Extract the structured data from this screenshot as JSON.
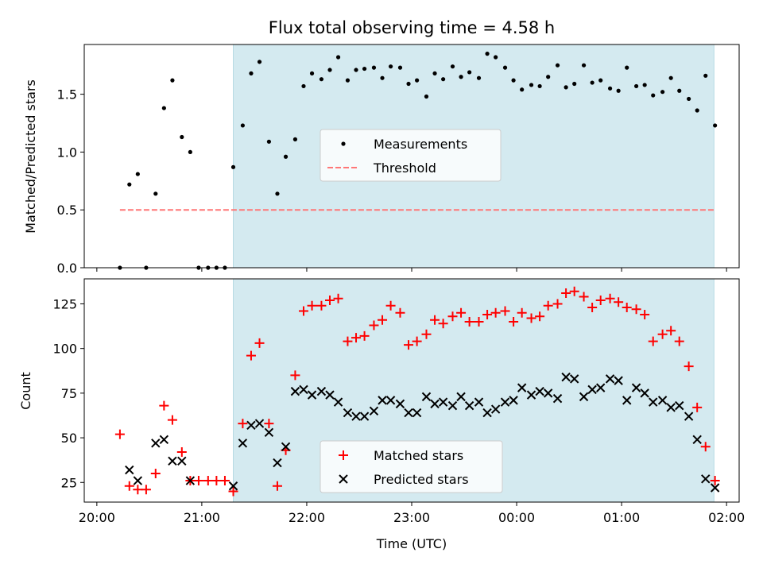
{
  "chart_data": [
    {
      "type": "scatter",
      "title": "Flux total observing time = 4.58 h",
      "xlabel": "",
      "ylabel": "Matched/Predicted stars",
      "xlim": [
        -0.12,
        6.12
      ],
      "ylim": [
        0,
        1.93
      ],
      "yticks": [
        0.0,
        0.5,
        1.0,
        1.5
      ],
      "ytick_labels": [
        "0.0",
        "0.5",
        "1.0",
        "1.5"
      ],
      "xtick_hours": [
        0,
        1,
        2,
        3,
        4,
        5,
        6
      ],
      "show_xtick_labels": false,
      "grid": false,
      "legend_location": "center",
      "shaded_span": [
        1.3,
        5.88
      ],
      "colors": {
        "measurements": "#000000",
        "threshold": "#ff7777",
        "span": "#d4eaf0"
      },
      "series": [
        {
          "name": "Measurements",
          "x": [
            0.22,
            0.31,
            0.39,
            0.47,
            0.56,
            0.64,
            0.72,
            0.81,
            0.89,
            0.97,
            1.06,
            1.14,
            1.22,
            1.3,
            1.39,
            1.47,
            1.55,
            1.64,
            1.72,
            1.8,
            1.89,
            1.97,
            2.05,
            2.14,
            2.22,
            2.3,
            2.39,
            2.47,
            2.55,
            2.64,
            2.72,
            2.8,
            2.89,
            2.97,
            3.05,
            3.14,
            3.22,
            3.3,
            3.39,
            3.47,
            3.55,
            3.64,
            3.72,
            3.8,
            3.89,
            3.97,
            4.05,
            4.14,
            4.22,
            4.3,
            4.39,
            4.47,
            4.55,
            4.64,
            4.72,
            4.8,
            4.89,
            4.97,
            5.05,
            5.14,
            5.22,
            5.3,
            5.39,
            5.47,
            5.55,
            5.64,
            5.72,
            5.8,
            5.89
          ],
          "y": [
            0.0,
            0.72,
            0.81,
            0.0,
            0.64,
            1.38,
            1.62,
            1.13,
            1.0,
            0.0,
            0.0,
            0.0,
            0.0,
            0.87,
            1.23,
            1.68,
            1.78,
            1.09,
            0.64,
            0.96,
            1.11,
            1.57,
            1.68,
            1.63,
            1.71,
            1.82,
            1.62,
            1.71,
            1.72,
            1.73,
            1.64,
            1.74,
            1.73,
            1.59,
            1.62,
            1.48,
            1.68,
            1.63,
            1.74,
            1.65,
            1.69,
            1.64,
            1.85,
            1.82,
            1.73,
            1.62,
            1.54,
            1.58,
            1.57,
            1.65,
            1.75,
            1.56,
            1.59,
            1.75,
            1.6,
            1.62,
            1.55,
            1.53,
            1.73,
            1.57,
            1.58,
            1.49,
            1.52,
            1.64,
            1.53,
            1.46,
            1.36,
            1.66,
            1.23
          ]
        },
        {
          "name": "Threshold",
          "x": [
            0.22,
            5.89
          ],
          "y": [
            0.5,
            0.5
          ]
        }
      ]
    },
    {
      "type": "scatter",
      "title": "",
      "xlabel": "Time (UTC)",
      "ylabel": "Count",
      "xlim": [
        -0.12,
        6.12
      ],
      "ylim": [
        14,
        139
      ],
      "yticks": [
        25,
        50,
        75,
        100,
        125
      ],
      "ytick_labels": [
        "25",
        "50",
        "75",
        "100",
        "125"
      ],
      "xtick_hours": [
        0,
        1,
        2,
        3,
        4,
        5,
        6
      ],
      "xtick_labels": [
        "20:00",
        "21:00",
        "22:00",
        "23:00",
        "00:00",
        "01:00",
        "02:00"
      ],
      "show_xtick_labels": true,
      "grid": false,
      "legend_location": "lower center",
      "shaded_span": [
        1.3,
        5.88
      ],
      "colors": {
        "matched": "#ff0000",
        "predicted": "#000000",
        "span": "#d4eaf0"
      },
      "series": [
        {
          "name": "Matched stars",
          "marker": "plus",
          "x": [
            0.22,
            0.31,
            0.39,
            0.47,
            0.56,
            0.64,
            0.72,
            0.81,
            0.89,
            0.97,
            1.06,
            1.14,
            1.22,
            1.3,
            1.39,
            1.47,
            1.55,
            1.64,
            1.72,
            1.8,
            1.89,
            1.97,
            2.05,
            2.14,
            2.22,
            2.3,
            2.39,
            2.47,
            2.55,
            2.64,
            2.72,
            2.8,
            2.89,
            2.97,
            3.05,
            3.14,
            3.22,
            3.3,
            3.39,
            3.47,
            3.55,
            3.64,
            3.72,
            3.8,
            3.89,
            3.97,
            4.05,
            4.14,
            4.22,
            4.3,
            4.39,
            4.47,
            4.55,
            4.64,
            4.72,
            4.8,
            4.89,
            4.97,
            5.05,
            5.14,
            5.22,
            5.3,
            5.39,
            5.47,
            5.55,
            5.64,
            5.72,
            5.8,
            5.89
          ],
          "y": [
            52,
            23,
            21,
            21,
            30,
            68,
            60,
            42,
            26,
            26,
            26,
            26,
            26,
            20,
            58,
            96,
            103,
            58,
            23,
            43,
            85,
            121,
            124,
            124,
            127,
            128,
            104,
            106,
            107,
            113,
            116,
            124,
            120,
            102,
            104,
            108,
            116,
            114,
            118,
            120,
            115,
            115,
            119,
            120,
            121,
            115,
            120,
            117,
            118,
            124,
            125,
            131,
            132,
            129,
            123,
            127,
            128,
            126,
            123,
            122,
            119,
            104,
            108,
            110,
            104,
            90,
            67,
            45,
            26
          ]
        },
        {
          "name": "Predicted stars",
          "marker": "x",
          "x": [
            0.31,
            0.39,
            0.56,
            0.64,
            0.72,
            0.81,
            0.89,
            1.3,
            1.39,
            1.47,
            1.55,
            1.64,
            1.72,
            1.8,
            1.89,
            1.97,
            2.05,
            2.14,
            2.22,
            2.3,
            2.39,
            2.47,
            2.55,
            2.64,
            2.72,
            2.8,
            2.89,
            2.97,
            3.05,
            3.14,
            3.22,
            3.3,
            3.39,
            3.47,
            3.55,
            3.64,
            3.72,
            3.8,
            3.89,
            3.97,
            4.05,
            4.14,
            4.22,
            4.3,
            4.39,
            4.47,
            4.55,
            4.64,
            4.72,
            4.8,
            4.89,
            4.97,
            5.05,
            5.14,
            5.22,
            5.3,
            5.39,
            5.47,
            5.55,
            5.64,
            5.72,
            5.8,
            5.89
          ],
          "y": [
            32,
            26,
            47,
            49,
            37,
            37,
            26,
            23,
            47,
            57,
            58,
            53,
            36,
            45,
            76,
            77,
            74,
            76,
            74,
            70,
            64,
            62,
            62,
            65,
            71,
            71,
            69,
            64,
            64,
            73,
            69,
            70,
            68,
            73,
            68,
            70,
            64,
            66,
            70,
            71,
            78,
            74,
            76,
            75,
            72,
            84,
            83,
            73,
            77,
            78,
            83,
            82,
            71,
            78,
            75,
            70,
            71,
            67,
            68,
            62,
            49,
            27,
            22
          ]
        }
      ]
    }
  ]
}
